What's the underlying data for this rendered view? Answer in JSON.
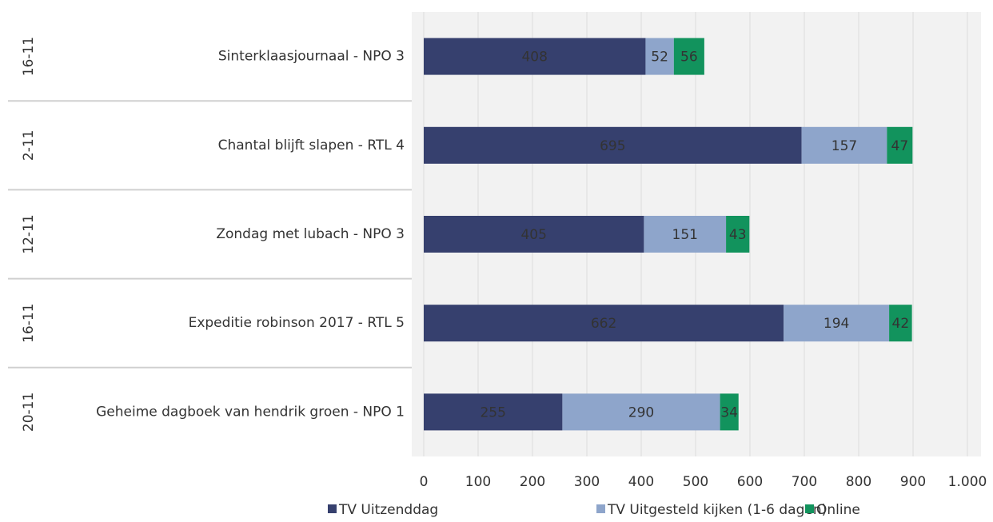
{
  "chart_data": {
    "type": "stacked_barh",
    "dates": [
      "16-11",
      "2-11",
      "12-11",
      "16-11",
      "20-11"
    ],
    "categories": [
      "Sinterklaasjournaal - NPO 3",
      "Chantal blijft slapen - RTL 4",
      "Zondag met lubach - NPO 3",
      "Expeditie robinson 2017 - RTL 5",
      "Geheime dagboek van hendrik groen - NPO 1"
    ],
    "series": [
      {
        "name": "TV Uitzenddag",
        "color": "#36406e",
        "values": [
          408,
          695,
          405,
          662,
          255
        ]
      },
      {
        "name": "TV Uitgesteld kijken (1-6 dagen)",
        "color": "#8ea5cb",
        "values": [
          52,
          157,
          151,
          194,
          290
        ]
      },
      {
        "name": "Online",
        "color": "#12935d",
        "values": [
          56,
          47,
          43,
          42,
          34
        ]
      }
    ],
    "xlim": [
      0,
      1000
    ],
    "xticks": [
      0,
      100,
      200,
      300,
      400,
      500,
      600,
      700,
      800,
      900,
      {
        "value": 1000,
        "label": "1.000"
      }
    ],
    "grid": true
  }
}
